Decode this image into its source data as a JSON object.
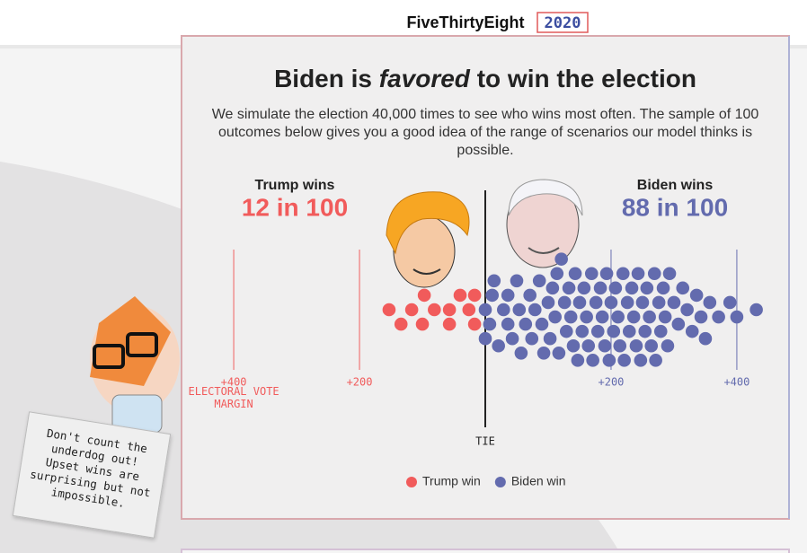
{
  "header": {
    "brand": "FiveThirtyEight",
    "year": "2020"
  },
  "note": "Don't count the underdog out! Upset wins are surprising but not impossible.",
  "chart_data": {
    "type": "beeswarm",
    "title_parts": [
      "Biden is",
      "favored",
      "to win the election"
    ],
    "subtitle": "We simulate the election 40,000 times to see who wins most often. The sample of 100 outcomes below gives you a good idea of the range of scenarios our model thinks is possible.",
    "left_label": "Trump wins",
    "left_value": "12 in 100",
    "right_label": "Biden wins",
    "right_value": "88 in 100",
    "xlabel": "ELECTORAL VOTE MARGIN",
    "xlim": [
      -483,
      483
    ],
    "xticks": [
      {
        "value": -400,
        "label": "+400"
      },
      {
        "value": -200,
        "label": "+200"
      },
      {
        "value": 0,
        "label": "TIE"
      },
      {
        "value": 200,
        "label": "+200"
      },
      {
        "value": 400,
        "label": "+400"
      }
    ],
    "series": [
      {
        "name": "Trump win",
        "color": "#f15b5b",
        "values": [
          -153,
          -134,
          -117,
          -100,
          -81,
          -97,
          -57,
          -57,
          -40,
          -26,
          -17,
          -17
        ]
      },
      {
        "name": "Biden win",
        "color": "#636bae",
        "values": [
          0,
          0,
          7,
          11,
          14,
          21,
          29,
          36,
          36,
          43,
          50,
          54,
          57,
          64,
          71,
          74,
          79,
          86,
          90,
          93,
          100,
          103,
          107,
          111,
          114,
          117,
          121,
          126,
          129,
          133,
          136,
          140,
          143,
          147,
          150,
          154,
          157,
          161,
          164,
          169,
          171,
          176,
          179,
          183,
          186,
          190,
          193,
          197,
          200,
          204,
          207,
          211,
          214,
          219,
          221,
          226,
          229,
          233,
          236,
          240,
          243,
          247,
          250,
          254,
          257,
          261,
          264,
          269,
          271,
          276,
          279,
          283,
          286,
          290,
          293,
          300,
          307,
          314,
          321,
          329,
          336,
          343,
          350,
          357,
          371,
          389,
          400,
          431
        ]
      }
    ]
  }
}
